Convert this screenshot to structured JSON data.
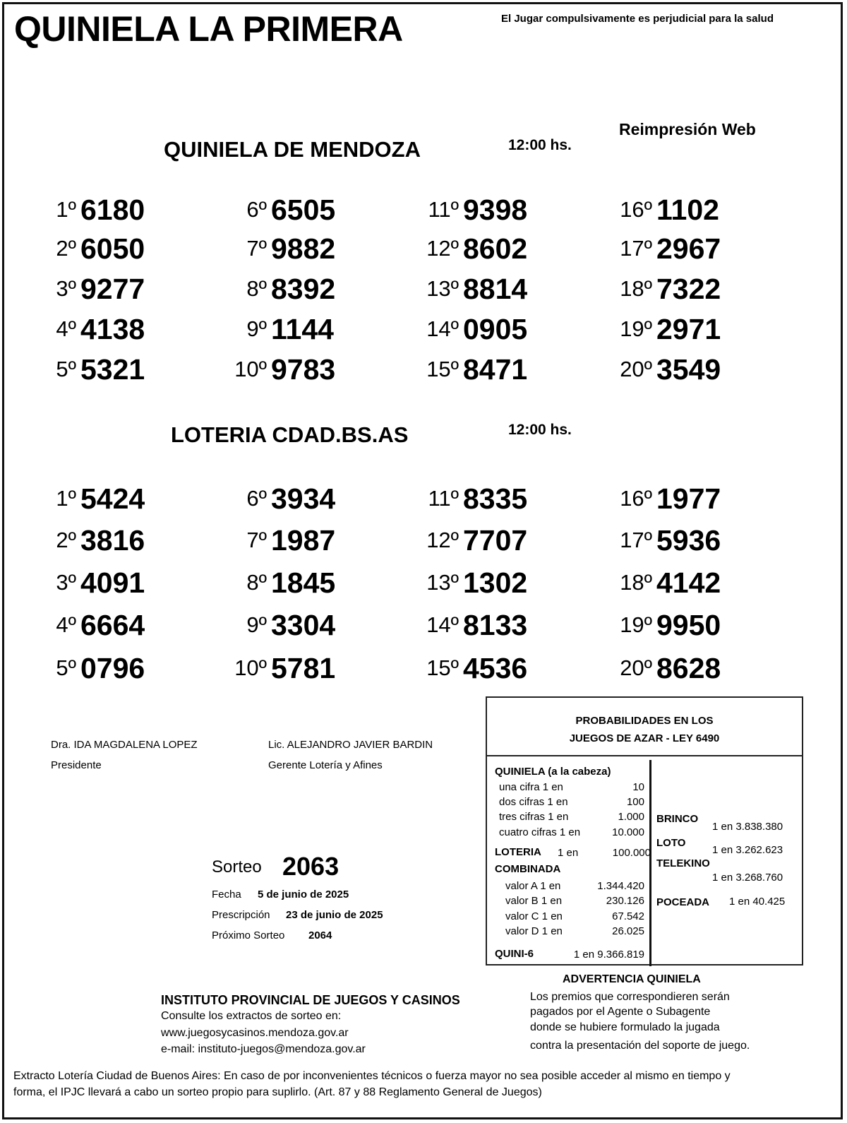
{
  "header": {
    "title": "QUINIELA LA PRIMERA",
    "warning": "El Jugar compulsivamente es perjudicial para la salud",
    "reprint": "Reimpresión Web"
  },
  "mendoza": {
    "title": "QUINIELA  DE MENDOZA",
    "time": "12:00  hs.",
    "results": [
      [
        "1º",
        "6180"
      ],
      [
        "2º",
        "6050"
      ],
      [
        "3º",
        "9277"
      ],
      [
        "4º",
        "4138"
      ],
      [
        "5º",
        "5321"
      ],
      [
        "6º",
        "6505"
      ],
      [
        "7º",
        "9882"
      ],
      [
        "8º",
        "8392"
      ],
      [
        "9º",
        "1144"
      ],
      [
        "10º",
        "9783"
      ],
      [
        "11º",
        "9398"
      ],
      [
        "12º",
        "8602"
      ],
      [
        "13º",
        "8814"
      ],
      [
        "14º",
        "0905"
      ],
      [
        "15º",
        "8471"
      ],
      [
        "16º",
        "1102"
      ],
      [
        "17º",
        "2967"
      ],
      [
        "18º",
        "7322"
      ],
      [
        "19º",
        "2971"
      ],
      [
        "20º",
        "3549"
      ]
    ]
  },
  "loteria": {
    "title": "LOTERIA CDAD.BS.AS",
    "time": "12:00  hs.",
    "results": [
      [
        "1º",
        "5424"
      ],
      [
        "2º",
        "3816"
      ],
      [
        "3º",
        "4091"
      ],
      [
        "4º",
        "6664"
      ],
      [
        "5º",
        "0796"
      ],
      [
        "6º",
        "3934"
      ],
      [
        "7º",
        "1987"
      ],
      [
        "8º",
        "1845"
      ],
      [
        "9º",
        "3304"
      ],
      [
        "10º",
        "5781"
      ],
      [
        "11º",
        "8335"
      ],
      [
        "12º",
        "7707"
      ],
      [
        "13º",
        "1302"
      ],
      [
        "14º",
        "8133"
      ],
      [
        "15º",
        "4536"
      ],
      [
        "16º",
        "1977"
      ],
      [
        "17º",
        "5936"
      ],
      [
        "18º",
        "4142"
      ],
      [
        "19º",
        "9950"
      ],
      [
        "20º",
        "8628"
      ]
    ]
  },
  "signatures": [
    {
      "name": "Dra. IDA MAGDALENA LOPEZ",
      "role": "Presidente"
    },
    {
      "name": "Lic. ALEJANDRO JAVIER BARDIN",
      "role": "Gerente Lotería y Afines"
    }
  ],
  "sorteo": {
    "label": "Sorteo",
    "number": "2063",
    "fecha_label": "Fecha",
    "fecha": "5 de junio de 2025",
    "prescripcion_label": "Prescripción",
    "prescripcion": "23 de junio de 2025",
    "proximo_label": "Próximo Sorteo",
    "proximo": "2064"
  },
  "probabilities": {
    "title1": "PROBABILIDADES EN LOS",
    "title2": "JUEGOS DE AZAR - LEY 6490",
    "quiniela_label": "QUINIELA (a la cabeza)",
    "quiniela": [
      [
        "una cifra  1 en",
        "10"
      ],
      [
        "dos cifras 1 en",
        "100"
      ],
      [
        "tres cifras 1 en",
        "1.000"
      ],
      [
        "cuatro cifras 1 en",
        "10.000"
      ]
    ],
    "loteria_label": "LOTERIA",
    "loteria_en": "1 en",
    "loteria_val": "100.000",
    "combinada_label": "COMBINADA",
    "combinada": [
      [
        "valor A 1 en",
        "1.344.420"
      ],
      [
        "valor B 1 en",
        "230.126"
      ],
      [
        "valor C 1 en",
        "67.542"
      ],
      [
        "valor D 1 en",
        "26.025"
      ]
    ],
    "quini6_label": "QUINI-6",
    "quini6_val": "1 en  9.366.819",
    "brinco_label": "BRINCO",
    "brinco_val": "1 en 3.838.380",
    "loto_label": "LOTO",
    "loto_val": "1 en 3.262.623",
    "telekino_label": "TELEKINO",
    "telekino_val": "1 en 3.268.760",
    "poceada_label": "POCEADA",
    "poceada_val": "1 en 40.425"
  },
  "institute": {
    "name": "INSTITUTO PROVINCIAL DE JUEGOS Y CASINOS",
    "consult": "Consulte los extractos de sorteo en:",
    "web": "www.juegosycasinos.mendoza.gov.ar",
    "email": "e-mail:  instituto-juegos@mendoza.gov.ar"
  },
  "advertencia": {
    "title": "ADVERTENCIA QUINIELA",
    "lines": [
      "Los premios que correspondieren serán",
      "pagados por el Agente o Subagente",
      "donde se hubiere formulado la jugada",
      "contra la presentación del soporte de juego."
    ]
  },
  "footer": {
    "line1": "Extracto Lotería Ciudad de Buenos Aires: En caso de por inconvenientes técnicos o fuerza mayor no sea posible acceder al mismo en tiempo y",
    "line2": "forma, el IPJC llevará a cabo un sorteo propio para suplirlo. (Art. 87 y 88 Reglamento General de Juegos)"
  }
}
